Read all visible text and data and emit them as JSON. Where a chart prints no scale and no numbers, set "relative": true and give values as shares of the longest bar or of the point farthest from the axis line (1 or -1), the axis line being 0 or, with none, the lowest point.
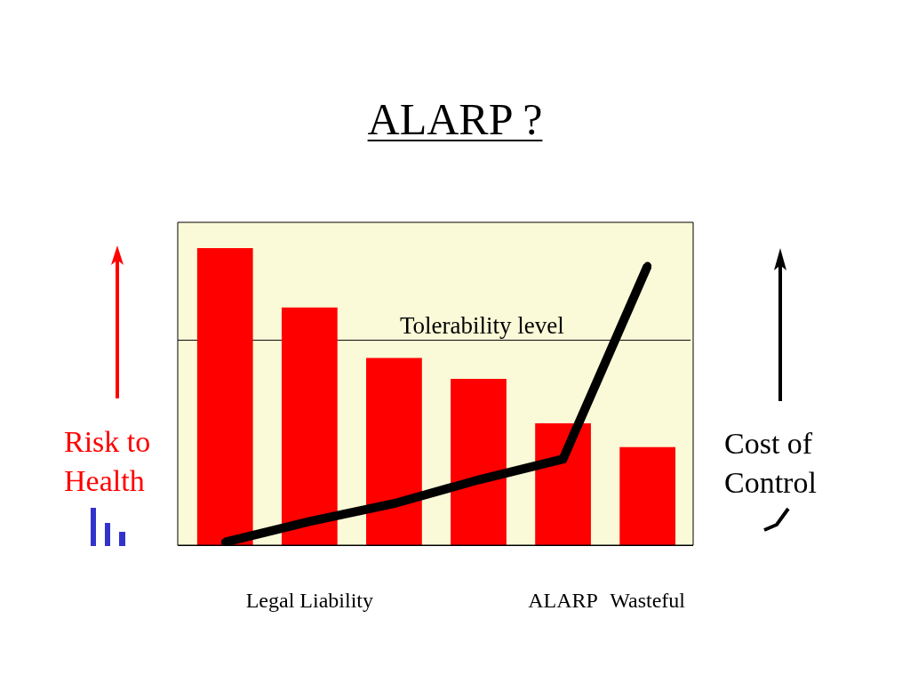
{
  "chart_data": {
    "type": "bar",
    "title": "ALARP ?",
    "ylabel": "Risk to Health",
    "y2label": "Cost of Control",
    "categories": [
      null,
      "Legal Liability",
      null,
      null,
      "ALARP",
      "Wasteful"
    ],
    "relative": true,
    "series": [
      {
        "color": "#ff0000",
        "values": [
          1,
          0.8,
          0.63,
          0.56,
          0.41,
          0.33
        ]
      },
      {
        "type": "line",
        "color": "#000000",
        "values": [
          0.01,
          0.08,
          0.14,
          0.22,
          0.29,
          0.94
        ],
        "marker": "circle",
        "line_style": "solid"
      }
    ],
    "ref_lines": [
      {
        "axis": "y",
        "value": 0.69,
        "label": "Tolerability level",
        "color": "#000000"
      }
    ]
  }
}
